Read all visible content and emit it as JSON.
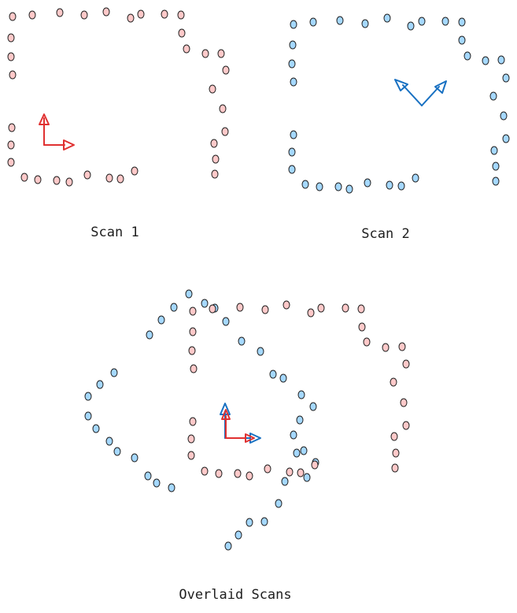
{
  "captions": {
    "scan1": "Scan 1",
    "scan2": "Scan 2",
    "overlay": "Overlaid Scans"
  },
  "colors": {
    "scan1_fill": "#ffc9c9",
    "scan2_fill": "#a5d8ff",
    "scan1_axis": "#e03131",
    "scan2_axis": "#1971c2",
    "outline": "#1e1e1e",
    "background": "#ffffff"
  },
  "icons": {
    "scan1_frame": "red-coordinate-frame-icon",
    "scan2_frame": "blue-coordinate-frame-icon"
  }
}
